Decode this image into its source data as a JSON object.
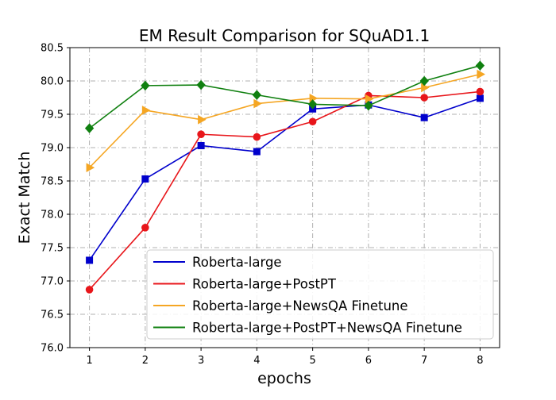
{
  "chart_data": {
    "type": "line",
    "title": "EM Result Comparison for SQuAD1.1",
    "xlabel": "epochs",
    "ylabel": "Exact Match",
    "x": [
      1,
      2,
      3,
      4,
      5,
      6,
      7,
      8
    ],
    "xticks": [
      "1",
      "2",
      "3",
      "4",
      "5",
      "6",
      "7",
      "8"
    ],
    "xlim": [
      0.65,
      8.35
    ],
    "ylim": [
      76.0,
      80.5
    ],
    "yticks": [
      "76.0",
      "76.5",
      "77.0",
      "77.5",
      "78.0",
      "78.5",
      "79.0",
      "79.5",
      "80.0",
      "80.5"
    ],
    "grid": true,
    "legend_position": "lower-right",
    "series": [
      {
        "name": "Roberta-large",
        "color": "#0000cc",
        "marker": "square",
        "values": [
          77.31,
          78.53,
          79.03,
          78.94,
          79.58,
          79.64,
          79.45,
          79.74
        ]
      },
      {
        "name": "Roberta-large+PostPT",
        "color": "#e8161b",
        "marker": "circle",
        "values": [
          76.87,
          77.8,
          79.2,
          79.16,
          79.39,
          79.78,
          79.75,
          79.84
        ]
      },
      {
        "name": "Roberta-large+NewsQA Finetune",
        "color": "#f5a623",
        "marker": "triangle-right",
        "values": [
          78.7,
          79.56,
          79.42,
          79.66,
          79.74,
          79.73,
          79.9,
          80.1
        ]
      },
      {
        "name": "Roberta-large+PostPT+NewsQA Finetune",
        "color": "#108010",
        "marker": "diamond",
        "values": [
          79.29,
          79.93,
          79.94,
          79.79,
          79.65,
          79.63,
          80.0,
          80.23
        ]
      }
    ]
  }
}
